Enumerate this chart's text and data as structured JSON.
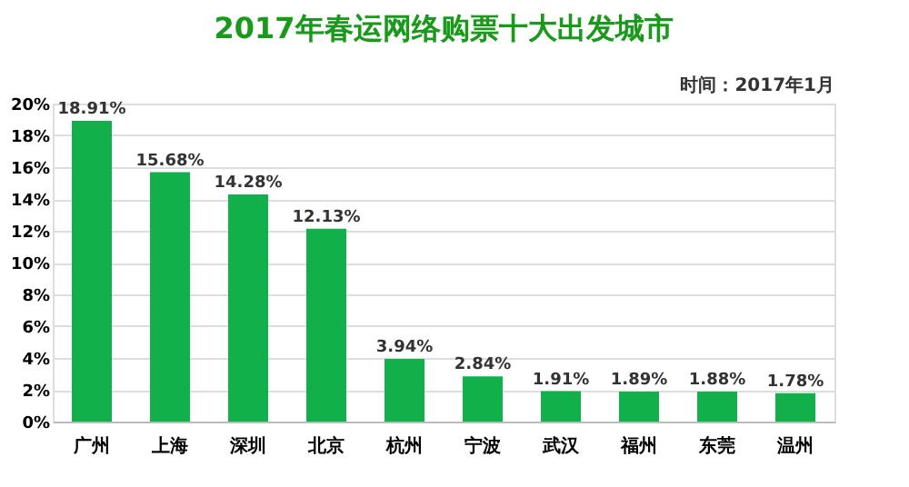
{
  "chart_data": {
    "type": "bar",
    "title": "2017年春运网络购票十大出发城市",
    "subtitle": "时间：2017年1月",
    "categories": [
      "广州",
      "上海",
      "深圳",
      "北京",
      "杭州",
      "宁波",
      "武汉",
      "福州",
      "东莞",
      "温州"
    ],
    "values": [
      18.91,
      15.68,
      14.28,
      12.13,
      3.94,
      2.84,
      1.91,
      1.89,
      1.88,
      1.78
    ],
    "value_labels": [
      "18.91%",
      "15.68%",
      "14.28%",
      "12.13%",
      "3.94%",
      "2.84%",
      "1.91%",
      "1.89%",
      "1.88%",
      "1.78%"
    ],
    "color": "#12b04a",
    "ylim": [
      0,
      20
    ],
    "yticks": [
      {
        "value": 0,
        "label": "0%"
      },
      {
        "value": 2,
        "label": "2%"
      },
      {
        "value": 4,
        "label": "4%"
      },
      {
        "value": 6,
        "label": "6%"
      },
      {
        "value": 8,
        "label": "8%"
      },
      {
        "value": 10,
        "label": "10%"
      },
      {
        "value": 12,
        "label": "12%"
      },
      {
        "value": 14,
        "label": "14%"
      },
      {
        "value": 16,
        "label": "16%"
      },
      {
        "value": 18,
        "label": "18%"
      },
      {
        "value": 20,
        "label": "20%"
      }
    ],
    "grid": "y"
  }
}
